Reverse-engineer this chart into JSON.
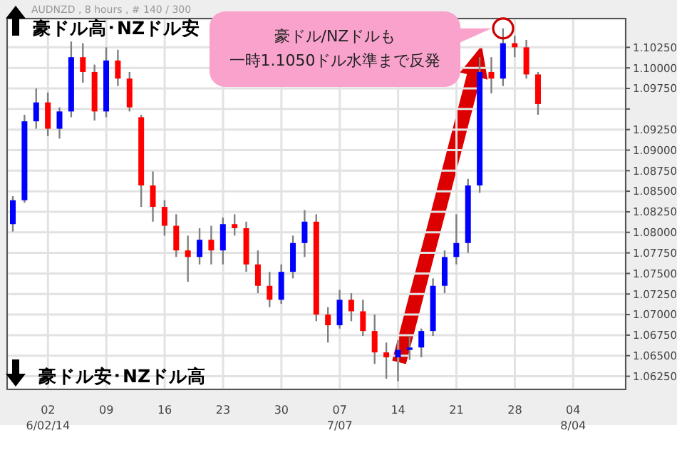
{
  "chart_data": {
    "type": "candlestick",
    "subtitle": "AUDNZD , 8 hours , # 140 / 300",
    "annotations": [
      "豪ドル高･NZドル安",
      "豪ドル安･NZドル高",
      "豪ドル/NZドルも",
      "一時1.1050ドル水準まで反発"
    ],
    "categories": [
      null,
      null,
      null,
      "02\n6/02/14",
      null,
      null,
      null,
      null,
      "09",
      null,
      null,
      null,
      null,
      "16",
      null,
      null,
      null,
      null,
      "23",
      null,
      null,
      null,
      null,
      "30",
      null,
      null,
      null,
      null,
      "07\n7/07",
      null,
      null,
      null,
      null,
      "14",
      null,
      null,
      null,
      null,
      "21",
      null,
      null,
      null,
      null,
      "28",
      null,
      null,
      null,
      null,
      "04\n8/04",
      null,
      null,
      null,
      null
    ],
    "ohlc": [
      [
        1.081,
        1.0844,
        1.0801,
        1.0839
      ],
      [
        1.0839,
        1.0943,
        1.0836,
        1.0935
      ],
      [
        1.0935,
        1.0975,
        1.0926,
        1.0958
      ],
      [
        1.0958,
        1.097,
        1.0917,
        1.0926
      ],
      [
        1.0926,
        1.0952,
        1.0914,
        1.0947
      ],
      [
        1.0947,
        1.1032,
        1.094,
        1.1013
      ],
      [
        1.1013,
        1.103,
        1.0982,
        1.0995
      ],
      [
        1.0995,
        1.1004,
        1.0936,
        1.0947
      ],
      [
        1.0947,
        1.1025,
        1.094,
        1.1009
      ],
      [
        1.1009,
        1.1022,
        1.0978,
        1.0987
      ],
      [
        1.0987,
        1.0995,
        1.0947,
        1.0952
      ],
      [
        1.094,
        1.0943,
        1.0831,
        1.0857
      ],
      [
        1.0857,
        1.0874,
        1.0813,
        1.0831
      ],
      [
        1.0831,
        1.0839,
        1.0796,
        1.0808
      ],
      [
        1.0808,
        1.0822,
        1.077,
        1.0778
      ],
      [
        1.0778,
        1.0796,
        1.074,
        1.077
      ],
      [
        1.077,
        1.0805,
        1.0761,
        1.0791
      ],
      [
        1.0791,
        1.0808,
        1.0761,
        1.0778
      ],
      [
        1.0778,
        1.0818,
        1.0761,
        1.081
      ],
      [
        1.081,
        1.0822,
        1.0796,
        1.0805
      ],
      [
        1.0805,
        1.0813,
        1.0752,
        1.0761
      ],
      [
        1.0761,
        1.0778,
        1.0726,
        1.0735
      ],
      [
        1.0735,
        1.0752,
        1.0709,
        1.0718
      ],
      [
        1.0718,
        1.0761,
        1.0713,
        1.0752
      ],
      [
        1.0752,
        1.0796,
        1.0744,
        1.0787
      ],
      [
        1.0787,
        1.0827,
        1.077,
        1.0813
      ],
      [
        1.0813,
        1.0822,
        1.0692,
        1.07
      ],
      [
        1.07,
        1.0709,
        1.0666,
        1.0687
      ],
      [
        1.0687,
        1.073,
        1.0683,
        1.0718
      ],
      [
        1.0718,
        1.0726,
        1.0692,
        1.0704
      ],
      [
        1.0704,
        1.0718,
        1.0674,
        1.068
      ],
      [
        1.068,
        1.07,
        1.064,
        1.0654
      ],
      [
        1.0654,
        1.0666,
        1.0622,
        1.0648
      ],
      [
        1.0648,
        1.0669,
        1.0619,
        1.0657
      ],
      [
        1.0657,
        1.0674,
        1.0645,
        1.066
      ],
      [
        1.066,
        1.0683,
        1.0648,
        1.068
      ],
      [
        1.068,
        1.0744,
        1.0674,
        1.0735
      ],
      [
        1.0735,
        1.0778,
        1.0726,
        1.077
      ],
      [
        1.077,
        1.0822,
        1.0761,
        1.0787
      ],
      [
        1.0787,
        1.0865,
        1.0775,
        1.0857
      ],
      [
        1.0857,
        1.1013,
        1.0848,
        1.0995
      ],
      [
        1.0995,
        1.1013,
        1.0969,
        1.0987
      ],
      [
        1.0987,
        1.1048,
        1.0978,
        1.103
      ],
      [
        1.103,
        1.1039,
        1.1013,
        1.1025
      ],
      [
        1.1025,
        1.1034,
        1.0987,
        1.0992
      ],
      [
        1.0992,
        1.0995,
        1.0943,
        1.0956
      ],
      null,
      null,
      null,
      null,
      null,
      null,
      null
    ],
    "colors": [
      "#0000ff",
      "#0000ff",
      "#0000ff",
      "#ff0000",
      "#0000ff",
      "#0000ff",
      "#ff0000",
      "#ff0000",
      "#0000ff",
      "#ff0000",
      "#ff0000",
      "#ff0000",
      "#ff0000",
      "#ff0000",
      "#ff0000",
      "#ff0000",
      "#0000ff",
      "#ff0000",
      "#0000ff",
      "#ff0000",
      "#ff0000",
      "#ff0000",
      "#ff0000",
      "#0000ff",
      "#0000ff",
      "#0000ff",
      "#ff0000",
      "#ff0000",
      "#0000ff",
      "#ff0000",
      "#ff0000",
      "#ff0000",
      "#ff0000",
      "#0000ff",
      "#0000ff",
      "#0000ff",
      "#0000ff",
      "#0000ff",
      "#0000ff",
      "#0000ff",
      "#0000ff",
      "#ff0000",
      "#0000ff",
      "#ff0000",
      "#ff0000",
      "#ff0000",
      null,
      null,
      null,
      null,
      null,
      null,
      null
    ],
    "ylim": [
      1.0609,
      1.106
    ],
    "yticks": [
      {
        "value": 1.0625,
        "label": "1.06250"
      },
      {
        "value": 1.065,
        "label": "1.06500"
      },
      {
        "value": 1.0675,
        "label": "1.06750"
      },
      {
        "value": 1.07,
        "label": "1.07000"
      },
      {
        "value": 1.0725,
        "label": "1.07250"
      },
      {
        "value": 1.075,
        "label": "1.07500"
      },
      {
        "value": 1.0775,
        "label": "1.07750"
      },
      {
        "value": 1.08,
        "label": "1.08000"
      },
      {
        "value": 1.0825,
        "label": "1.08250"
      },
      {
        "value": 1.085,
        "label": "1.08500"
      },
      {
        "value": 1.0875,
        "label": "1.08750"
      },
      {
        "value": 1.09,
        "label": "1.09000"
      },
      {
        "value": 1.0925,
        "label": "1.09250"
      },
      {
        "value": 1.095,
        "label": null
      },
      {
        "value": 1.0975,
        "label": "1.09750"
      },
      {
        "value": 1.1,
        "label": "1.10000"
      },
      {
        "value": 1.1025,
        "label": "1.10250"
      }
    ],
    "grid": true
  }
}
